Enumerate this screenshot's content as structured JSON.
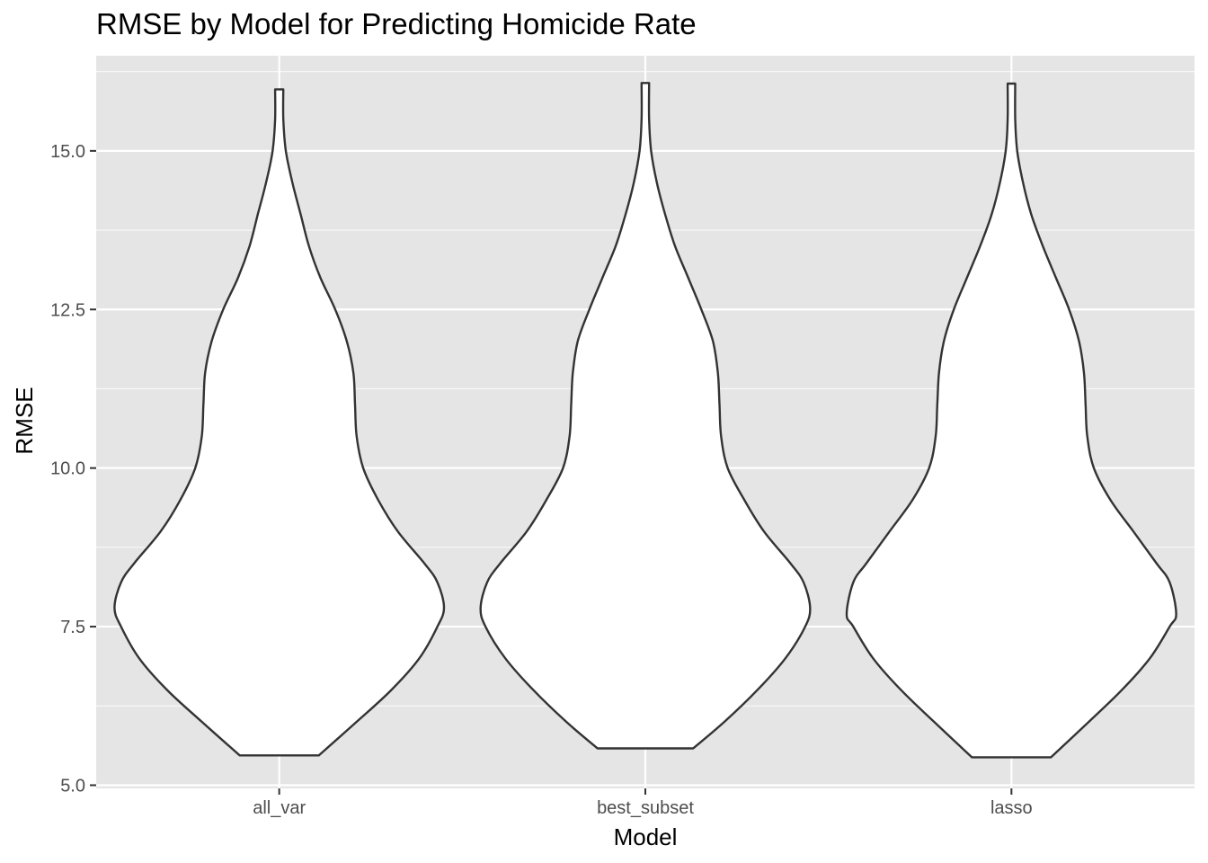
{
  "chart_data": {
    "type": "violin",
    "title": "RMSE by Model for Predicting Homicide Rate",
    "xlabel": "Model",
    "ylabel": "RMSE",
    "categories": [
      "all_var",
      "best_subset",
      "lasso"
    ],
    "ylim": [
      4.95,
      16.5
    ],
    "yticks": [
      5.0,
      7.5,
      10.0,
      12.5,
      15.0
    ],
    "ytick_labels": [
      "5.0",
      "7.5",
      "10.0",
      "12.5",
      "15.0"
    ],
    "grid": true,
    "legend": "none",
    "series": [
      {
        "category": "all_var",
        "min": 5.47,
        "max": 15.97,
        "density_profile": [
          [
            5.47,
            0.24
          ],
          [
            6.0,
            0.47
          ],
          [
            6.5,
            0.68
          ],
          [
            7.0,
            0.85
          ],
          [
            7.5,
            0.96
          ],
          [
            7.8,
            1.0
          ],
          [
            8.2,
            0.96
          ],
          [
            8.5,
            0.88
          ],
          [
            9.0,
            0.72
          ],
          [
            9.5,
            0.6
          ],
          [
            10.0,
            0.51
          ],
          [
            10.5,
            0.47
          ],
          [
            11.0,
            0.46
          ],
          [
            11.5,
            0.45
          ],
          [
            12.0,
            0.41
          ],
          [
            12.5,
            0.34
          ],
          [
            13.0,
            0.25
          ],
          [
            13.5,
            0.18
          ],
          [
            14.0,
            0.13
          ],
          [
            14.5,
            0.08
          ],
          [
            15.0,
            0.04
          ],
          [
            15.5,
            0.025
          ],
          [
            15.97,
            0.025
          ]
        ]
      },
      {
        "category": "best_subset",
        "min": 5.58,
        "max": 16.07,
        "density_profile": [
          [
            5.58,
            0.29
          ],
          [
            6.0,
            0.48
          ],
          [
            6.5,
            0.68
          ],
          [
            7.0,
            0.85
          ],
          [
            7.5,
            0.97
          ],
          [
            7.8,
            1.0
          ],
          [
            8.2,
            0.96
          ],
          [
            8.5,
            0.88
          ],
          [
            9.0,
            0.72
          ],
          [
            9.5,
            0.6
          ],
          [
            10.0,
            0.5
          ],
          [
            10.5,
            0.46
          ],
          [
            11.0,
            0.45
          ],
          [
            11.5,
            0.44
          ],
          [
            12.0,
            0.41
          ],
          [
            12.5,
            0.34
          ],
          [
            13.0,
            0.26
          ],
          [
            13.5,
            0.18
          ],
          [
            14.0,
            0.12
          ],
          [
            14.5,
            0.07
          ],
          [
            15.0,
            0.035
          ],
          [
            15.5,
            0.023
          ],
          [
            16.07,
            0.023
          ]
        ]
      },
      {
        "category": "lasso",
        "min": 5.44,
        "max": 16.06,
        "density_profile": [
          [
            5.44,
            0.24
          ],
          [
            6.0,
            0.47
          ],
          [
            6.5,
            0.67
          ],
          [
            7.0,
            0.84
          ],
          [
            7.5,
            0.96
          ],
          [
            7.7,
            1.0
          ],
          [
            8.2,
            0.96
          ],
          [
            8.5,
            0.88
          ],
          [
            9.0,
            0.74
          ],
          [
            9.5,
            0.6
          ],
          [
            10.0,
            0.5
          ],
          [
            10.5,
            0.46
          ],
          [
            11.0,
            0.45
          ],
          [
            11.5,
            0.44
          ],
          [
            12.0,
            0.41
          ],
          [
            12.5,
            0.35
          ],
          [
            13.0,
            0.27
          ],
          [
            13.5,
            0.19
          ],
          [
            14.0,
            0.12
          ],
          [
            14.5,
            0.07
          ],
          [
            15.0,
            0.035
          ],
          [
            15.5,
            0.023
          ],
          [
            16.06,
            0.023
          ]
        ]
      }
    ],
    "colors": {
      "panel_background": "#e5e5e5",
      "grid_major": "#ffffff",
      "grid_minor": "#f2f2f2",
      "violin_fill": "#ffffff",
      "violin_stroke": "#333333",
      "tick_text": "#4d4d4d",
      "axis_tick": "#333333"
    }
  }
}
